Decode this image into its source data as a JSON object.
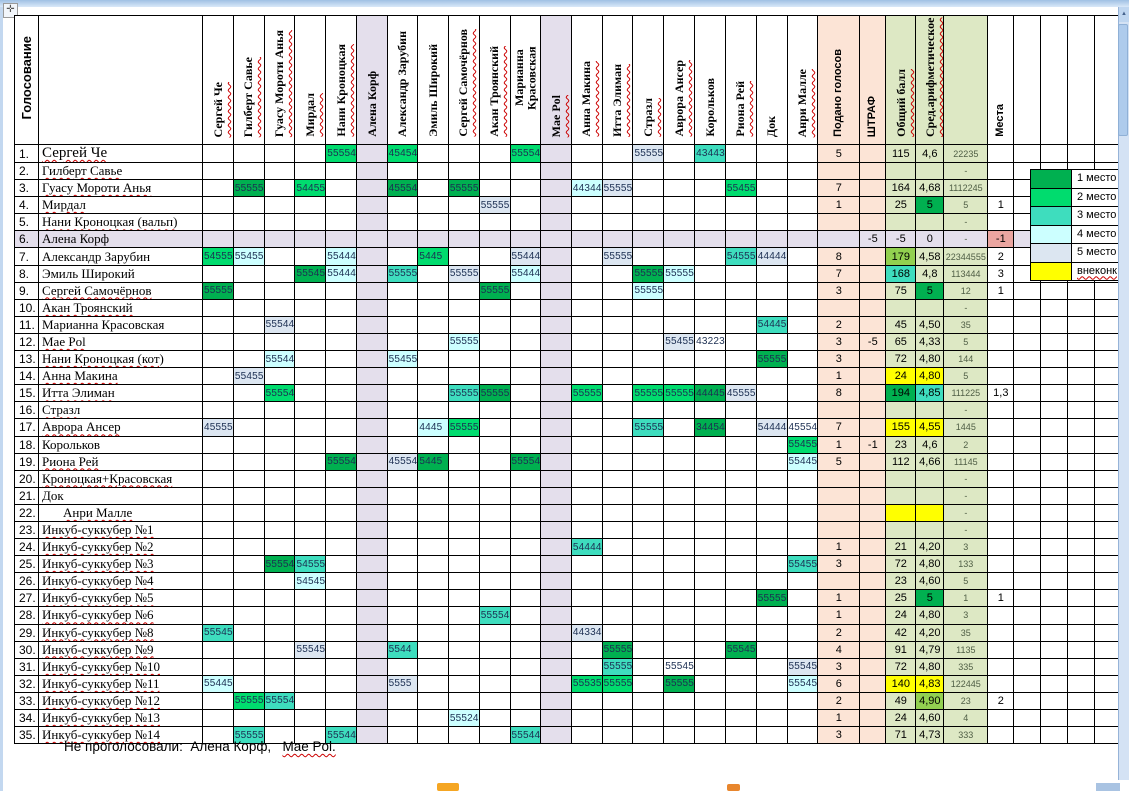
{
  "palette": {
    "place": {
      "1": "#00B050",
      "2": "#00DC6E",
      "3": "#3EDDBE",
      "4": "#CCFFFF",
      "5": "#DCE6F1"
    },
    "out": "#FFFF00",
    "yellow_green": "#92D050",
    "peach": "#FCE4D6",
    "col_green": "#DDE8C4",
    "lavender": "#E4DFEC",
    "pink": "#EBA5A0",
    "vote_text": "#1C2F52"
  },
  "handle_icon": "✛",
  "scroll_up_icon": "▲",
  "header": {
    "corner": "Голосование",
    "voters": [
      {
        "l": "Сергей Че",
        "w": 1
      },
      {
        "l": "Гилберт Савье",
        "w": 1
      },
      {
        "l": "Гуасу Мороти Анья",
        "w": 1
      },
      {
        "l": "Мирдал",
        "w": 1
      },
      {
        "l": "Нани Кроноцкая",
        "w": 1
      },
      {
        "l": "Алена Корф",
        "w": 0,
        "bg": "lav"
      },
      {
        "l": "Александр Зарубин",
        "w": 0
      },
      {
        "l": "Эмиль Широкий",
        "w": 0
      },
      {
        "l": "Сергей Самочёрнов",
        "w": 1
      },
      {
        "l": "Акан Троянский",
        "w": 1
      },
      {
        "l": "Марианна Красовская",
        "w": 0
      },
      {
        "l": "Mae Pol",
        "w": 1,
        "bg": "lav"
      },
      {
        "l": "Анна Макина",
        "w": 1
      },
      {
        "l": "Итта Элиман",
        "w": 1
      },
      {
        "l": "Стразл",
        "w": 1
      },
      {
        "l": "Аврора Ансер",
        "w": 1
      },
      {
        "l": "Корольков",
        "w": 0
      },
      {
        "l": "Риона Рей",
        "w": 1
      },
      {
        "l": "Док",
        "w": 0
      },
      {
        "l": "Анри Малле",
        "w": 1
      }
    ],
    "summary": [
      {
        "l": "Подано голосов",
        "bg": "peach",
        "f": "sans"
      },
      {
        "l": "ШТРАФ",
        "bg": "peach",
        "f": "sans"
      },
      {
        "l": "Общий балл",
        "bg": "green",
        "f": "serif",
        "w": 1
      },
      {
        "l": "Сред.арифметическое",
        "bg": "green",
        "f": "serif",
        "w": 1
      },
      {
        "l": "",
        "bg": "green",
        "f": "sans"
      },
      {
        "l": "Места",
        "f": "sans"
      }
    ],
    "trailing_empty": 4
  },
  "legend": [
    {
      "label": "1 место",
      "color": "1"
    },
    {
      "label": "2 место",
      "color": "2"
    },
    {
      "label": "3 место",
      "color": "3"
    },
    {
      "label": "4 место",
      "color": "4"
    },
    {
      "label": "5 место",
      "color": "5"
    },
    {
      "label": "внеконк",
      "color": "y",
      "wavy": 1
    }
  ],
  "rows": [
    {
      "n": "1.",
      "name": "Сергей Че",
      "w": 1,
      "big": 1,
      "votes": {
        "4": [
          "55554",
          "2"
        ],
        "6": [
          "45454",
          "2"
        ],
        "10": [
          "55554",
          "2"
        ],
        "14": [
          "55555",
          "5"
        ],
        "16": [
          "43443",
          "3"
        ]
      },
      "podano": "5",
      "total": "115",
      "avg": "4,6",
      "extra": "22235"
    },
    {
      "n": "2.",
      "name": "Гилберт Савье",
      "w": 1,
      "votes": {},
      "extra": "-"
    },
    {
      "n": "3.",
      "name": "Гуасу Мороти Анья",
      "w": 1,
      "votes": {
        "1": [
          "55555",
          "1"
        ],
        "3": [
          "54455",
          "2"
        ],
        "6": [
          "45554",
          "1"
        ],
        "8": [
          "55555",
          "1"
        ],
        "12": [
          "44344",
          "4"
        ],
        "13": [
          "55555",
          "5"
        ],
        "17": [
          "55455",
          "2"
        ]
      },
      "podano": "7",
      "total": "164",
      "avg": "4,68",
      "extra": "1112245"
    },
    {
      "n": "4.",
      "name": "Мирдал",
      "w": 1,
      "votes": {
        "9": [
          "55555",
          "5"
        ]
      },
      "podano": "1",
      "total": "25",
      "avg": "5",
      "avg_bg": "1",
      "extra": "5",
      "mesta": "1"
    },
    {
      "n": "5.",
      "name": "Нани Кроноцкая (вальп)",
      "w": 1,
      "votes": {},
      "extra": "-"
    },
    {
      "n": "6.",
      "name": "Алена Корф",
      "w": 0,
      "bg": "lav",
      "votes": {},
      "shtraf": "-5",
      "total": "-5",
      "avg": "0",
      "extra": "-",
      "mesta": "-1",
      "mesta_bg": "pink"
    },
    {
      "n": "7.",
      "name": "Александр Зарубин",
      "w": 0,
      "votes": {
        "0": [
          "54555",
          "2"
        ],
        "1": [
          "55455",
          "4"
        ],
        "4": [
          "55444",
          "4"
        ],
        "7": [
          "5445",
          "2"
        ],
        "10": [
          "55444",
          "5"
        ],
        "13": [
          "55555",
          "5"
        ],
        "17": [
          "54555",
          "3"
        ],
        "18": [
          "44444",
          "5"
        ]
      },
      "podano": "8",
      "total": "179",
      "total_bg": "yg",
      "avg": "4,58",
      "extra": "22344555",
      "mesta": "2"
    },
    {
      "n": "8.",
      "name": "Эмиль Широкий",
      "w": 0,
      "votes": {
        "3": [
          "55545",
          "1"
        ],
        "4": [
          "55444",
          "4"
        ],
        "6": [
          "55555",
          "3"
        ],
        "8": [
          "55555",
          "5"
        ],
        "10": [
          "55444",
          "4"
        ],
        "14": [
          "55555",
          "1"
        ],
        "15": [
          "55555",
          "4"
        ]
      },
      "podano": "7",
      "total": "168",
      "total_bg": "3",
      "avg": "4,8",
      "extra": "113444",
      "mesta": "3"
    },
    {
      "n": "9.",
      "name": "Сергей Самочёрнов",
      "w": 1,
      "votes": {
        "0": [
          "55555",
          "1"
        ],
        "9": [
          "55555",
          "1"
        ],
        "14": [
          "55555",
          "4"
        ]
      },
      "podano": "3",
      "total": "75",
      "avg": "5",
      "avg_bg": "1",
      "extra": "12",
      "mesta": "1"
    },
    {
      "n": "10.",
      "name": "Акан Троянский",
      "w": 1,
      "votes": {},
      "extra": "-"
    },
    {
      "n": "11.",
      "name": "Марианна Красовская",
      "w": 0,
      "votes": {
        "2": [
          "55544",
          "5"
        ],
        "18": [
          "54445",
          "3"
        ]
      },
      "podano": "2",
      "total": "45",
      "avg": "4,50",
      "extra": "35"
    },
    {
      "n": "12.",
      "name": "Mae Pol",
      "w": 1,
      "votes": {
        "8": [
          "55555",
          "4"
        ],
        "15": [
          "55455",
          "5"
        ],
        "16": [
          "43223",
          null
        ]
      },
      "podano": "3",
      "shtraf": "-5",
      "total": "65",
      "avg": "4,33",
      "extra": "5"
    },
    {
      "n": "13.",
      "name": "Нани Кроноцкая (кот)",
      "w": 1,
      "votes": {
        "2": [
          "55544",
          "4"
        ],
        "6": [
          "55455",
          "4"
        ],
        "18": [
          "55555",
          "1"
        ]
      },
      "podano": "3",
      "total": "72",
      "avg": "4,80",
      "extra": "144"
    },
    {
      "n": "14.",
      "name": "Анна Макина",
      "w": 1,
      "votes": {
        "1": [
          "55455",
          "5"
        ]
      },
      "podano": "1",
      "total": "24",
      "total_bg": "y",
      "avg": "4,80",
      "avg_bg": "y",
      "extra": "5"
    },
    {
      "n": "15.",
      "name": "Итта Элиман",
      "w": 1,
      "votes": {
        "2": [
          "55554",
          "2"
        ],
        "8": [
          "55555",
          "3"
        ],
        "9": [
          "55555",
          "1"
        ],
        "12": [
          "55555",
          "2"
        ],
        "14": [
          "55555",
          "2"
        ],
        "15": [
          "55555",
          "2"
        ],
        "16": [
          "44445",
          "1"
        ],
        "17": [
          "45555",
          "5"
        ]
      },
      "podano": "8",
      "total": "194",
      "total_bg": "1",
      "avg": "4,85",
      "avg_bg": "3",
      "extra": "111225",
      "mesta": "1,3"
    },
    {
      "n": "16.",
      "name": "Стразл",
      "w": 1,
      "votes": {},
      "extra": "-"
    },
    {
      "n": "17.",
      "name": "Аврора Ансер",
      "w": 1,
      "votes": {
        "0": [
          "45555",
          "5"
        ],
        "7": [
          "4445",
          "4"
        ],
        "8": [
          "55555",
          "2"
        ],
        "14": [
          "55555",
          "3"
        ],
        "16": [
          "34454",
          "1"
        ],
        "18": [
          "54444",
          "5"
        ],
        "19": [
          "45554",
          null
        ]
      },
      "podano": "7",
      "total": "155",
      "total_bg": "y",
      "avg": "4,55",
      "avg_bg": "y",
      "extra": "1445"
    },
    {
      "n": "18.",
      "name": "Корольков",
      "w": 0,
      "votes": {
        "19": [
          "55455",
          "2"
        ]
      },
      "podano": "1",
      "shtraf": "-1",
      "total": "23",
      "avg": "4,6",
      "extra": "2"
    },
    {
      "n": "19.",
      "name": "Риона Рей",
      "w": 1,
      "votes": {
        "4": [
          "55554",
          "1"
        ],
        "6": [
          "45554",
          "5"
        ],
        "7": [
          "5445",
          "1"
        ],
        "10": [
          "55554",
          "1"
        ],
        "19": [
          "55445",
          "4"
        ]
      },
      "podano": "5",
      "total": "112",
      "avg": "4,66",
      "extra": "11145"
    },
    {
      "n": "20.",
      "name": "Кроноцкая+Красовская",
      "w": 1,
      "votes": {},
      "extra": "-"
    },
    {
      "n": "21.",
      "name": "Док",
      "w": 0,
      "votes": {},
      "extra": "-"
    },
    {
      "n": "22.",
      "name": "Анри Малле",
      "w": 1,
      "indent": 1,
      "votes": {},
      "total": "",
      "total_bg": "y",
      "avg": "",
      "avg_bg": "y",
      "extra": "-"
    },
    {
      "n": "23.",
      "name": "Инкуб-суккубер №1",
      "w": 1,
      "votes": {},
      "extra": "-"
    },
    {
      "n": "24.",
      "name": "Инкуб-суккубер №2",
      "w": 1,
      "votes": {
        "12": [
          "54444",
          "3"
        ]
      },
      "podano": "1",
      "total": "21",
      "avg": "4,20",
      "extra": "3"
    },
    {
      "n": "25.",
      "name": "Инкуб-суккубер №3",
      "w": 1,
      "votes": {
        "2": [
          "55554",
          "1"
        ],
        "3": [
          "54555",
          "3"
        ],
        "19": [
          "55455",
          "3"
        ]
      },
      "podano": "3",
      "total": "72",
      "avg": "4,80",
      "extra": "133"
    },
    {
      "n": "26.",
      "name": "Инкуб-суккубер №4",
      "w": 1,
      "votes": {
        "3": [
          "54545",
          "4"
        ]
      },
      "total": "23",
      "avg": "4,60",
      "extra": "5"
    },
    {
      "n": "27.",
      "name": "Инкуб-суккубер №5",
      "w": 1,
      "votes": {
        "18": [
          "55555",
          "1"
        ]
      },
      "podano": "1",
      "total": "25",
      "avg": "5",
      "avg_bg": "1",
      "extra": "1",
      "mesta": "1"
    },
    {
      "n": "28.",
      "name": "Инкуб-суккубер №6",
      "w": 1,
      "votes": {
        "9": [
          "55554",
          "3"
        ]
      },
      "podano": "1",
      "total": "24",
      "avg": "4,80",
      "extra": "3"
    },
    {
      "n": "29.",
      "name": "Инкуб-суккубер №8",
      "w": 1,
      "votes": {
        "0": [
          "55545",
          "3"
        ],
        "12": [
          "44334",
          "5"
        ]
      },
      "podano": "2",
      "total": "42",
      "avg": "4,20",
      "extra": "35"
    },
    {
      "n": "30.",
      "name": "Инкуб-суккубер №9",
      "w": 1,
      "votes": {
        "3": [
          "55545",
          "5"
        ],
        "6": [
          "5544",
          "3"
        ],
        "13": [
          "55555",
          "1"
        ],
        "17": [
          "55545",
          "1"
        ]
      },
      "podano": "4",
      "total": "91",
      "avg": "4,79",
      "extra": "1135"
    },
    {
      "n": "31.",
      "name": "Инкуб-суккубер №10",
      "w": 1,
      "votes": {
        "13": [
          "55555",
          "3"
        ],
        "15": [
          "55545",
          null
        ],
        "19": [
          "55545",
          "5"
        ]
      },
      "podano": "3",
      "total": "72",
      "avg": "4,80",
      "extra": "335"
    },
    {
      "n": "32.",
      "name": "Инкуб-суккубер №11",
      "w": 1,
      "votes": {
        "0": [
          "55445",
          "4"
        ],
        "6": [
          "5555",
          "5"
        ],
        "12": [
          "55535",
          "2"
        ],
        "13": [
          "55555",
          "2"
        ],
        "15": [
          "55555",
          "1"
        ],
        "19": [
          "55545",
          "4"
        ]
      },
      "podano": "6",
      "total": "140",
      "total_bg": "y",
      "avg": "4,83",
      "avg_bg": "y",
      "extra": "122445"
    },
    {
      "n": "33.",
      "name": "Инкуб-суккубер №12",
      "w": 1,
      "votes": {
        "1": [
          "55555",
          "2"
        ],
        "2": [
          "55554",
          "3"
        ]
      },
      "podano": "2",
      "total": "49",
      "avg": "4,90",
      "avg_bg": "yg",
      "extra": "23",
      "mesta": "2"
    },
    {
      "n": "34.",
      "name": "Инкуб-суккубер №13",
      "w": 1,
      "votes": {
        "8": [
          "55524",
          "4"
        ]
      },
      "podano": "1",
      "total": "24",
      "avg": "4,60",
      "extra": "4"
    },
    {
      "n": "35.",
      "name": "Инкуб-суккубер №14",
      "w": 1,
      "votes": {
        "1": [
          "55555",
          "3"
        ],
        "4": [
          "55544",
          "3"
        ],
        "10": [
          "55544",
          "3"
        ]
      },
      "podano": "3",
      "total": "71",
      "avg": "4,73",
      "extra": "333"
    }
  ],
  "footer": {
    "prefix": "Не проголосовали:",
    "name1": "Алена Корф,",
    "name2": "Mae Pol."
  }
}
